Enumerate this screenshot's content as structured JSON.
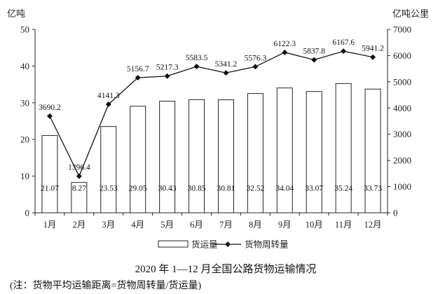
{
  "chart_data": {
    "type": "bar",
    "title": "2020 年 1—12 月全国公路货物运输情况",
    "note": "(注：货物平均运输距离=货物周转量/货运量)",
    "left_unit": "亿吨",
    "right_unit": "亿吨公里",
    "categories": [
      "1月",
      "2月",
      "3月",
      "4月",
      "5月",
      "6月",
      "7月",
      "8月",
      "9月",
      "10月",
      "11月",
      "12月"
    ],
    "y_left": {
      "min": 0,
      "max": 50,
      "ticks": [
        "0",
        "10",
        "20",
        "30",
        "40",
        "50"
      ]
    },
    "y_right": {
      "min": 0,
      "max": 7000,
      "ticks": [
        "0",
        "1000",
        "2000",
        "3000",
        "4000",
        "5000",
        "6000",
        "7000"
      ]
    },
    "series": [
      {
        "name": "货运量",
        "kind": "bar",
        "axis": "left",
        "values": [
          21.07,
          8.27,
          23.53,
          29.05,
          30.43,
          30.85,
          30.81,
          32.52,
          34.04,
          33.07,
          35.24,
          33.73
        ],
        "labels": [
          "21.07",
          "8.27",
          "23.53",
          "29.05",
          "30.43",
          "30.85",
          "30.81",
          "32.52",
          "34.04",
          "33.07",
          "35.24",
          "33.73"
        ]
      },
      {
        "name": "货物周转量",
        "kind": "line",
        "axis": "right",
        "marker": "diamond",
        "values": [
          3690.2,
          1396.4,
          4141.3,
          5156.7,
          5217.3,
          5583.5,
          5341.2,
          5576.3,
          6122.3,
          5837.8,
          6167.6,
          5941.2
        ],
        "labels": [
          "3690.2",
          "1396.4",
          "4141.3",
          "5156.7",
          "5217.3",
          "5583.5",
          "5341.2",
          "5576.3",
          "6122.3",
          "5837.8",
          "6167.6",
          "5941.2"
        ]
      }
    ],
    "legend_position": "bottom-center"
  }
}
